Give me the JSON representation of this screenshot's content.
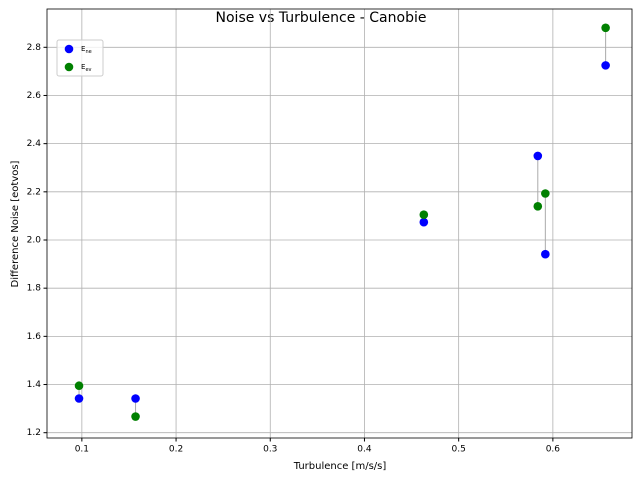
{
  "chart_data": {
    "type": "scatter",
    "title": "Noise vs Turbulence - Canobie",
    "xlabel": "Turbulence [m/s/s]",
    "ylabel": "Difference Noise [eotvos]",
    "x": [
      0.097,
      0.157,
      0.463,
      0.584,
      0.592,
      0.656
    ],
    "series": [
      {
        "name": "Ene",
        "color": "#0000ff",
        "values": [
          1.342,
          1.342,
          2.074,
          2.349,
          1.941,
          2.725
        ]
      },
      {
        "name": "Eev",
        "color": "#008000",
        "values": [
          1.395,
          1.267,
          2.105,
          2.14,
          2.193,
          2.881
        ]
      }
    ],
    "connector_color": "#aaaaaa",
    "xlim": [
      0.063,
      0.684
    ],
    "xticks": [
      0.1,
      0.2,
      0.3,
      0.4,
      0.5,
      0.6
    ],
    "ylim": [
      1.178,
      2.959
    ],
    "yticks": [
      1.2,
      1.4,
      1.6,
      1.8,
      2.0,
      2.2,
      2.4,
      2.6,
      2.8
    ],
    "grid": true,
    "legend": "upper left"
  }
}
